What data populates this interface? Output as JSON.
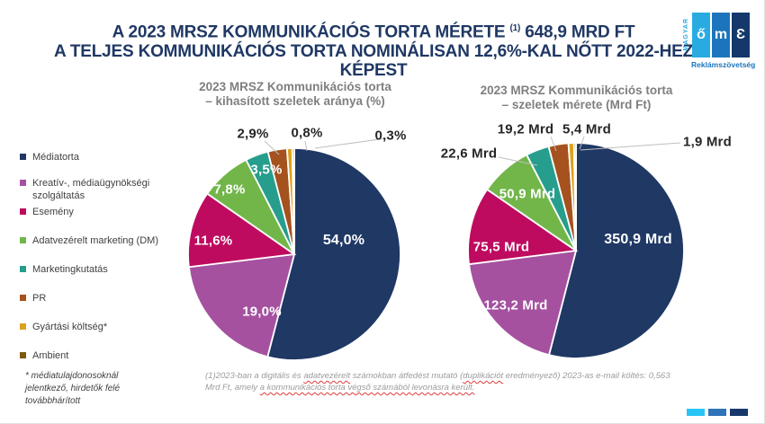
{
  "header": {
    "line1_pre": "A 2023 MRSZ KOMMUNIKÁCIÓS TORTA MÉRETE",
    "line1_sup": "(1)",
    "line1_post": "648,9 MRD FT",
    "line2": "A TELJES KOMMUNIKÁCIÓS TORTA NOMINÁLISAN 12,6%-KAL NŐTT 2022-HEZ",
    "line3": "KÉPEST"
  },
  "logo": {
    "vertical_text": "MAGYAR",
    "caption": "Reklámszövetség",
    "tile_glyphs": [
      "ő",
      "m",
      "Ɛ"
    ],
    "tile_colors": [
      "#29ABE2",
      "#1C75BC",
      "#14386B"
    ]
  },
  "palette": [
    "#1F3864",
    "#A551A0",
    "#BE0B5F",
    "#72B64A",
    "#279D8D",
    "#A5521E",
    "#DDA21D",
    "#7D5A10"
  ],
  "legend": {
    "items": [
      {
        "label": "Médiatorta"
      },
      {
        "label": "Kreatív-, médiaügynökségi szolgáltatás"
      },
      {
        "label": "Esemény"
      },
      {
        "label": "Adatvezérelt marketing (DM)"
      },
      {
        "label": "Marketingkutatás"
      },
      {
        "label": "PR"
      },
      {
        "label": "Gyártási költség*"
      },
      {
        "label": "Ambient"
      }
    ],
    "note": "* médiatulajdonosoknál jelentkező, hirdetők felé továbbhárított"
  },
  "chart_data": [
    {
      "type": "pie",
      "title_line1": "2023 MRSZ Kommunikációs torta",
      "title_line2": "– kihasított szeletek aránya (%)",
      "unit": "%",
      "categories": [
        "Médiatorta",
        "Kreatív-, médiaügynökségi szolgáltatás",
        "Esemény",
        "Adatvezérelt marketing (DM)",
        "Marketingkutatás",
        "PR",
        "Gyártási költség*",
        "Ambient"
      ],
      "values": [
        54.0,
        19.0,
        11.6,
        7.8,
        3.5,
        2.9,
        0.8,
        0.3
      ],
      "value_labels": [
        "54,0%",
        "19,0%",
        "11,6%",
        "7,8%",
        "3,5%",
        "2,9%",
        "0,8%",
        "0,3%"
      ],
      "legend_position": "left",
      "start_angle_deg": 0,
      "direction": "clockwise"
    },
    {
      "type": "pie",
      "title_line1": "2023 MRSZ Kommunikációs torta",
      "title_line2": "– szeletek mérete (Mrd Ft)",
      "unit": "Mrd Ft",
      "categories": [
        "Médiatorta",
        "Kreatív-, médiaügynökségi szolgáltatás",
        "Esemény",
        "Adatvezérelt marketing (DM)",
        "Marketingkutatás",
        "PR",
        "Gyártási költség*",
        "Ambient"
      ],
      "values": [
        350.9,
        123.2,
        75.5,
        50.9,
        22.6,
        19.2,
        5.4,
        1.9
      ],
      "value_labels": [
        "350,9 Mrd",
        "123,2 Mrd",
        "75,5 Mrd",
        "50,9 Mrd",
        "22,6 Mrd",
        "19,2 Mrd",
        "5,4 Mrd",
        "1,9 Mrd"
      ],
      "legend_position": "left",
      "start_angle_deg": 0,
      "direction": "clockwise"
    }
  ],
  "footnote": {
    "segments": [
      {
        "text": "(1)2023-ban a digitális és ",
        "wavy": false
      },
      {
        "text": "adatvezérelt",
        "wavy": true
      },
      {
        "text": " számokban átfedést mutató (",
        "wavy": false
      },
      {
        "text": "duplikációt",
        "wavy": true
      },
      {
        "text": " eredményező) 2023-as e-mail költés: 0,563 Mrd Ft, amely ",
        "wavy": false
      },
      {
        "text": "a kommunikációs torta végső számából levonásra került.",
        "wavy": true
      }
    ]
  },
  "footer": {
    "bar_colors": [
      "#29C5F6",
      "#2E73B8",
      "#17386B"
    ]
  },
  "colors": {
    "title": "#1F3864",
    "chart_title": "#7F7F7F",
    "legend_text": "#404040",
    "outside_label": "#262626",
    "leader_line": "#BFBFBF"
  }
}
